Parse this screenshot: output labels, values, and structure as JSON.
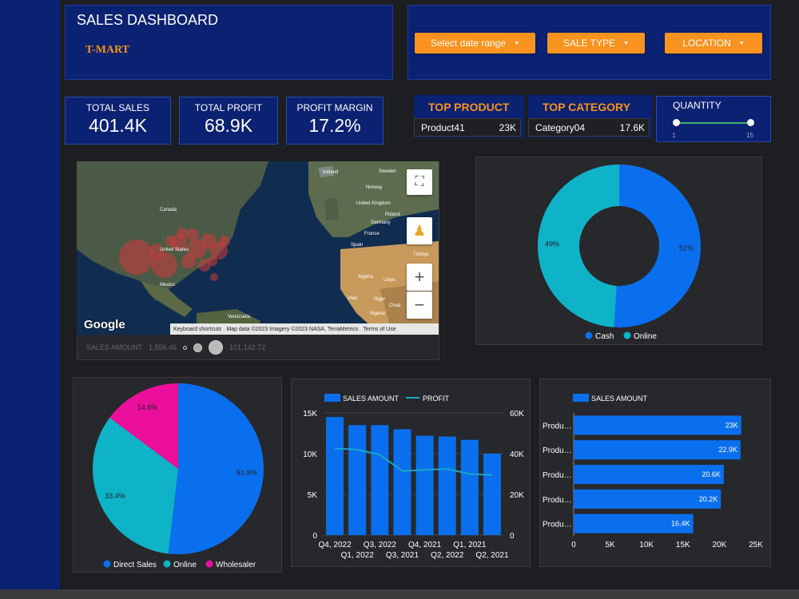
{
  "header": {
    "title": "SALES DASHBOARD",
    "brand": "T-MART"
  },
  "filters": {
    "date": "Select date range",
    "sale_type": "SALE TYPE",
    "location": "LOCATION"
  },
  "kpis": {
    "total_sales": {
      "label": "TOTAL SALES",
      "value": "401.4K"
    },
    "total_profit": {
      "label": "TOTAL PROFIT",
      "value": "68.9K"
    },
    "profit_margin": {
      "label": "PROFIT MARGIN",
      "value": "17.2%"
    }
  },
  "top_product": {
    "title": "TOP PRODUCT",
    "name": "Product41",
    "value": "23K"
  },
  "top_category": {
    "title": "TOP CATEGORY",
    "name": "Category04",
    "value": "17.6K"
  },
  "quantity": {
    "label": "QUANTITY",
    "min": "1",
    "max": "15"
  },
  "map": {
    "brand": "Google",
    "attribution": [
      "Keyboard shortcuts",
      "Map data ©2023 Imagery ©2023 NASA, TerraMetrics",
      "Terms of Use"
    ],
    "legend_label": "SALES AMOUNT",
    "legend_min": "1,556.46",
    "legend_max": "101,142.72",
    "places": [
      "Iceland",
      "Sweden",
      "Norway",
      "United Kingdom",
      "Poland",
      "Germany",
      "France",
      "Spain",
      "Türkiye",
      "Algeria",
      "Libya",
      "Mali",
      "Niger",
      "Chad",
      "Nigeria",
      "Canada",
      "United States",
      "Mexico",
      "Venezuela"
    ]
  },
  "colors": {
    "blue": "#0a6fee",
    "teal": "#0fb3c8",
    "pink": "#ec0f9c",
    "orange": "#f7931e",
    "navy": "#0b2172"
  },
  "chart_data": [
    {
      "type": "pie",
      "donut": true,
      "title": "",
      "categories": [
        "Cash",
        "Online"
      ],
      "values": [
        51,
        49
      ],
      "labels": [
        "51%",
        "49%"
      ]
    },
    {
      "type": "pie",
      "title": "",
      "categories": [
        "Direct Sales",
        "Online",
        "Wholesaler"
      ],
      "values": [
        51.9,
        33.4,
        14.8
      ],
      "labels": [
        "51.9%",
        "33.4%",
        "14.8%"
      ]
    },
    {
      "type": "bar",
      "title": "",
      "categories": [
        "Q4, 2022",
        "Q1, 2022",
        "Q3, 2022",
        "Q3, 2021",
        "Q4, 2021",
        "Q2, 2022",
        "Q1, 2021",
        "Q2, 2021"
      ],
      "series": [
        {
          "name": "SALES AMOUNT",
          "kind": "bar",
          "axis": "left",
          "values": [
            14500,
            13500,
            13500,
            13000,
            12200,
            12100,
            11700,
            10000
          ]
        },
        {
          "name": "PROFIT",
          "kind": "line",
          "axis": "right",
          "values": [
            42500,
            42000,
            39500,
            31500,
            32000,
            32500,
            30000,
            29500
          ]
        }
      ],
      "left_axis": {
        "ylim": [
          0,
          15000
        ],
        "ticks": [
          "0",
          "5K",
          "10K",
          "15K"
        ]
      },
      "right_axis": {
        "ylim": [
          0,
          60000
        ],
        "ticks": [
          "0",
          "20K",
          "40K",
          "60K"
        ]
      },
      "grid": true
    },
    {
      "type": "bar",
      "orientation": "horizontal",
      "title": "",
      "series_name": "SALES AMOUNT",
      "categories": [
        "Produ…",
        "Produ…",
        "Produ…",
        "Produ…",
        "Produ…"
      ],
      "values": [
        23000,
        22900,
        20600,
        20200,
        16400
      ],
      "labels": [
        "23K",
        "22.9K",
        "20.6K",
        "20.2K",
        "16.4K"
      ],
      "xlim": [
        0,
        25000
      ],
      "ticks": [
        "0",
        "5K",
        "10K",
        "15K",
        "20K",
        "25K"
      ]
    }
  ]
}
